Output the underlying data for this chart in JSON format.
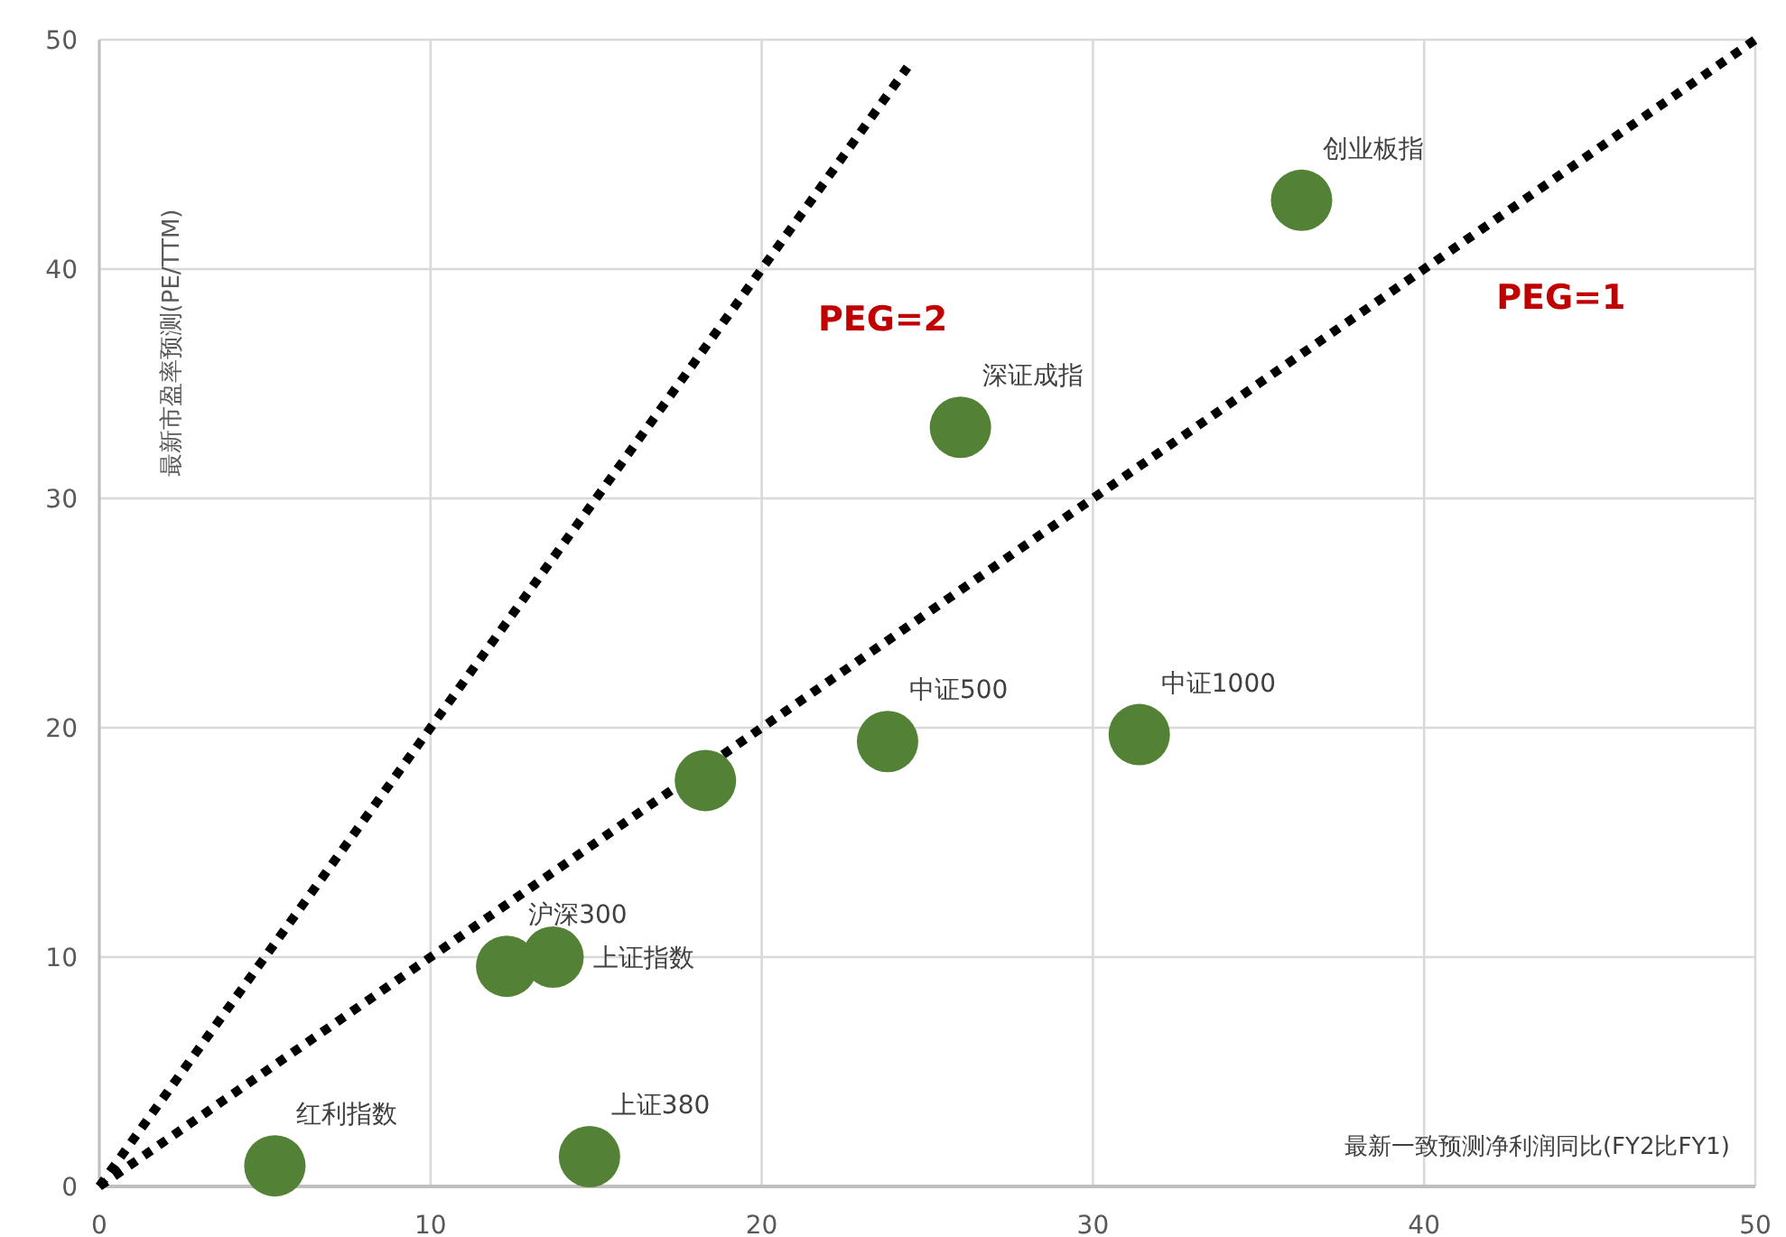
{
  "chart_data": {
    "type": "scatter",
    "xlabel": "最新一致预测净利润同比(FY2比FY1)",
    "ylabel": "最新市盈率预测(PE/TTM)",
    "xlim": [
      0,
      50
    ],
    "ylim": [
      0,
      50
    ],
    "xticks": [
      0,
      10,
      20,
      30,
      40,
      50
    ],
    "yticks": [
      0,
      10,
      20,
      30,
      40,
      50
    ],
    "grid": true,
    "series": [
      {
        "marker": "circle",
        "color": "#538135",
        "x": [
          5.3,
          14.8,
          12.3,
          13.7,
          18.3,
          23.8,
          31.4,
          26.0,
          36.3
        ],
        "values": [
          0.9,
          1.3,
          9.6,
          10.0,
          17.7,
          19.4,
          19.7,
          33.1,
          43.0
        ]
      },
      {
        "type": "line",
        "name": "PEG=2",
        "color": "#000000",
        "line_style": "dotted",
        "x": [
          0,
          24.4
        ],
        "values": [
          0,
          48.8
        ]
      },
      {
        "type": "line",
        "name": "PEG=1",
        "color": "#000000",
        "line_style": "dotted",
        "x": [
          0,
          50
        ],
        "values": [
          0,
          50
        ]
      }
    ],
    "annotations": [
      {
        "text": "红利指数",
        "x": 5.3,
        "y": 0.9
      },
      {
        "text": "上证380",
        "x": 14.8,
        "y": 1.3
      },
      {
        "text": "沪深300",
        "x": 12.3,
        "y": 9.6
      },
      {
        "text": "上证指数",
        "x": 13.7,
        "y": 10.0
      },
      {
        "text": "中证500",
        "x": 23.8,
        "y": 19.4
      },
      {
        "text": "中证1000",
        "x": 31.4,
        "y": 19.7
      },
      {
        "text": "深证成指",
        "x": 26.0,
        "y": 33.1
      },
      {
        "text": "创业板指",
        "x": 36.3,
        "y": 43.0
      }
    ]
  }
}
